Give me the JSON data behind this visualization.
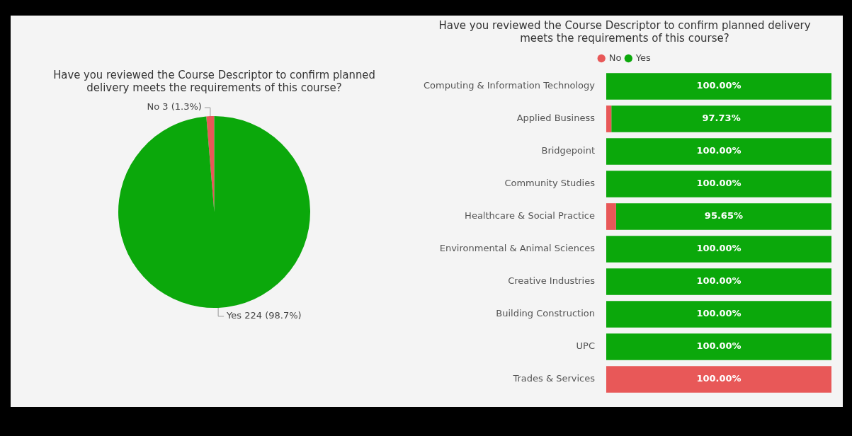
{
  "chart_data": [
    {
      "type": "pie",
      "title": "Have you reviewed the Course Descriptor to confirm planned delivery meets the requirements of this course?",
      "categories": [
        "No",
        "Yes"
      ],
      "values": [
        3,
        224
      ],
      "colors": [
        "#e85858",
        "#0ba80b"
      ],
      "value_labels": [
        "3 (1.3%)",
        "224 (98.7%)"
      ],
      "legend": false
    },
    {
      "type": "bar",
      "orientation": "horizontal",
      "stacked": true,
      "title": "Have you reviewed the Course Descriptor to confirm planned delivery meets the requirements of this course?",
      "categories": [
        "Computing & Information Technology",
        "Applied Business",
        "Bridgepoint",
        "Community Studies",
        "Healthcare & Social Practice",
        "Environmental & Animal Sciences",
        "Creative Industries",
        "Building Construction",
        "UPC",
        "Trades & Services"
      ],
      "series": [
        {
          "name": "No",
          "color": "#e85858",
          "values": [
            0,
            2.27,
            0,
            0,
            4.35,
            0,
            0,
            0,
            0,
            100
          ],
          "value_labels": [
            null,
            null,
            null,
            null,
            null,
            null,
            null,
            null,
            null,
            "100.00%"
          ]
        },
        {
          "name": "Yes",
          "color": "#0ba80b",
          "values": [
            100,
            97.73,
            100,
            100,
            95.65,
            100,
            100,
            100,
            100,
            0
          ],
          "value_labels": [
            "100.00%",
            "97.73%",
            "100.00%",
            "100.00%",
            "95.65%",
            "100.00%",
            "100.00%",
            "100.00%",
            "100.00%",
            null
          ]
        }
      ],
      "xlim": [
        0,
        100
      ],
      "tick_labels": "y",
      "legend": "top"
    }
  ]
}
